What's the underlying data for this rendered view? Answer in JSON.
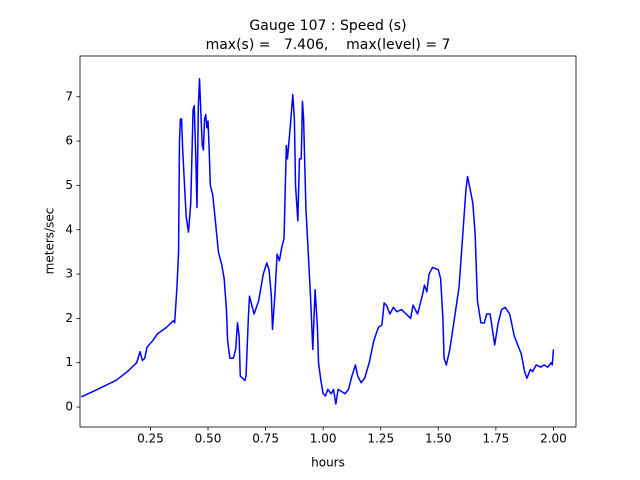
{
  "chart_data": {
    "type": "line",
    "title": "Gauge 107 : Speed (s)",
    "subtitle": "max(s) =   7.406,    max(level) = 7",
    "xlabel": "hours",
    "ylabel": "meters/sec",
    "xlim": [
      -0.056,
      2.098
    ],
    "ylim": [
      -0.45,
      7.92
    ],
    "xticks": [
      0.25,
      {
        "value": 0.5,
        "label": "0.50"
      },
      0.75,
      {
        "value": 1.0,
        "label": "1.00"
      },
      1.25,
      {
        "value": 1.5,
        "label": "1.50"
      },
      1.75,
      {
        "value": 2.0,
        "label": "2.00"
      }
    ],
    "yticks": [
      0,
      1,
      2,
      3,
      4,
      5,
      6,
      7
    ],
    "grid": false,
    "series": [
      {
        "color": "#0000ff",
        "x": [
          -0.05,
          0.0,
          0.1,
          0.15,
          0.19,
          0.205,
          0.215,
          0.225,
          0.235,
          0.26,
          0.28,
          0.32,
          0.35,
          0.355,
          0.365,
          0.372,
          0.376,
          0.38,
          0.385,
          0.39,
          0.405,
          0.415,
          0.425,
          0.435,
          0.44,
          0.447,
          0.452,
          0.458,
          0.463,
          0.47,
          0.475,
          0.48,
          0.485,
          0.49,
          0.495,
          0.5,
          0.505,
          0.51,
          0.52,
          0.53,
          0.545,
          0.56,
          0.57,
          0.58,
          0.585,
          0.595,
          0.61,
          0.62,
          0.628,
          0.635,
          0.64,
          0.65,
          0.66,
          0.665,
          0.675,
          0.68,
          0.69,
          0.7,
          0.72,
          0.74,
          0.755,
          0.765,
          0.775,
          0.78,
          0.79,
          0.8,
          0.81,
          0.82,
          0.83,
          0.84,
          0.845,
          0.86,
          0.868,
          0.875,
          0.88,
          0.89,
          0.897,
          0.905,
          0.91,
          0.915,
          0.925,
          0.935,
          0.945,
          0.955,
          0.965,
          0.975,
          0.98,
          0.99,
          1.0,
          1.01,
          1.02,
          1.035,
          1.045,
          1.055,
          1.065,
          1.08,
          1.095,
          1.11,
          1.125,
          1.14,
          1.15,
          1.165,
          1.18,
          1.2,
          1.22,
          1.24,
          1.255,
          1.265,
          1.275,
          1.29,
          1.305,
          1.32,
          1.34,
          1.36,
          1.38,
          1.39,
          1.41,
          1.43,
          1.44,
          1.45,
          1.46,
          1.475,
          1.5,
          1.51,
          1.52,
          1.525,
          1.535,
          1.55,
          1.57,
          1.59,
          1.605,
          1.62,
          1.627,
          1.635,
          1.65,
          1.66,
          1.67,
          1.685,
          1.7,
          1.71,
          1.725,
          1.735,
          1.745,
          1.76,
          1.775,
          1.79,
          1.81,
          1.83,
          1.86,
          1.875,
          1.885,
          1.9,
          1.91,
          1.925,
          1.945,
          1.96,
          1.975,
          1.99,
          1.995,
          2.0
        ],
        "values": [
          0.23,
          0.35,
          0.6,
          0.8,
          1.0,
          1.25,
          1.05,
          1.1,
          1.35,
          1.5,
          1.65,
          1.8,
          1.95,
          1.9,
          2.7,
          3.5,
          6.0,
          6.5,
          6.5,
          5.8,
          4.3,
          3.95,
          4.6,
          6.7,
          6.8,
          5.6,
          4.5,
          6.8,
          7.406,
          6.5,
          5.9,
          5.8,
          6.5,
          6.6,
          6.3,
          6.45,
          5.8,
          5.0,
          4.8,
          4.3,
          3.5,
          3.2,
          2.9,
          2.2,
          1.5,
          1.1,
          1.1,
          1.3,
          1.9,
          1.6,
          0.7,
          0.65,
          0.6,
          0.7,
          2.0,
          2.5,
          2.3,
          2.1,
          2.4,
          3.0,
          3.25,
          3.1,
          2.5,
          1.75,
          2.5,
          3.45,
          3.3,
          3.6,
          3.8,
          5.9,
          5.6,
          6.5,
          7.05,
          6.5,
          5.0,
          4.2,
          5.6,
          5.6,
          6.9,
          6.5,
          4.5,
          3.5,
          2.5,
          1.3,
          2.65,
          1.8,
          1.0,
          0.6,
          0.3,
          0.25,
          0.4,
          0.3,
          0.4,
          0.07,
          0.4,
          0.35,
          0.3,
          0.4,
          0.7,
          0.95,
          0.7,
          0.55,
          0.65,
          1.0,
          1.5,
          1.8,
          1.85,
          2.35,
          2.3,
          2.1,
          2.25,
          2.15,
          2.2,
          2.1,
          2.0,
          2.3,
          2.1,
          2.5,
          2.75,
          2.6,
          3.0,
          3.15,
          3.1,
          2.9,
          2.0,
          1.1,
          0.95,
          1.3,
          2.0,
          2.7,
          3.8,
          4.9,
          5.2,
          5.0,
          4.6,
          3.9,
          2.4,
          1.9,
          1.9,
          2.1,
          2.1,
          1.75,
          1.4,
          1.9,
          2.2,
          2.25,
          2.1,
          1.6,
          1.2,
          0.8,
          0.65,
          0.85,
          0.8,
          0.95,
          0.9,
          0.95,
          0.9,
          1.0,
          0.95,
          1.3
        ]
      }
    ]
  }
}
